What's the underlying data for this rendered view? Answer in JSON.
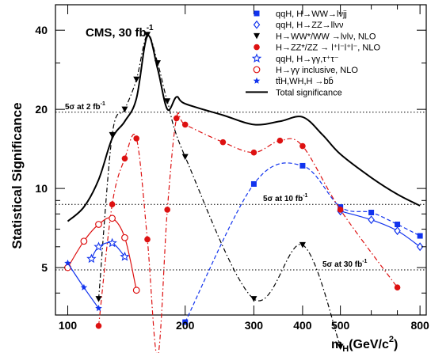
{
  "chart_data": {
    "type": "line",
    "title": "",
    "annotation": "CMS, 30 fb",
    "annotation_superscript": "-1",
    "ylabel": "Statistical Significance",
    "xlabel_main": "m",
    "xlabel_sub": "H",
    "xlabel_unit": "(GeV/c",
    "xlabel_unit_sup": "2",
    "xlabel_close": ")",
    "xscale": "log",
    "yscale": "log",
    "xlim": [
      93,
      830
    ],
    "ylim": [
      3.3,
      50
    ],
    "xticks": [
      100,
      200,
      300,
      400,
      500,
      800
    ],
    "yticks": [
      5,
      10,
      20,
      40
    ],
    "grid": false,
    "legend_position": "top-right",
    "reference_lines": [
      {
        "y": 19.5,
        "label": "5σ at 2 fb",
        "label_sup": "-1"
      },
      {
        "y": 8.7,
        "label": "5σ at 10 fb",
        "label_sup": "-1"
      },
      {
        "y": 4.9,
        "label": "5σ at 30 fb",
        "label_sup": "-1"
      }
    ],
    "series": [
      {
        "name": "qqH, H→WW→lνjj",
        "color": "#1133ee",
        "style": "dash",
        "marker": "square",
        "points": [
          [
            200,
            3.1
          ],
          [
            300,
            10.4
          ],
          [
            400,
            12.2
          ],
          [
            500,
            8.5
          ],
          [
            600,
            8.1
          ],
          [
            700,
            7.3
          ],
          [
            800,
            6.6
          ]
        ]
      },
      {
        "name": "qqH, H→ZZ→llνν",
        "color": "#1133ee",
        "style": "solid",
        "marker": "diamond-open",
        "points": [
          [
            500,
            8.2
          ],
          [
            600,
            7.6
          ],
          [
            700,
            6.9
          ],
          [
            800,
            6.0
          ]
        ]
      },
      {
        "name": "H→WW*/WW →lνlν, NLO",
        "color": "#000000",
        "style": "dashdot",
        "marker": "triangle-down",
        "points": [
          [
            120,
            3.8
          ],
          [
            130,
            16.0
          ],
          [
            140,
            20.0
          ],
          [
            150,
            26.0
          ],
          [
            160,
            38.5
          ],
          [
            170,
            30.0
          ],
          [
            180,
            21.5
          ],
          [
            200,
            13.2
          ],
          [
            300,
            3.8
          ],
          [
            400,
            6.1
          ],
          [
            500,
            2.5
          ]
        ]
      },
      {
        "name": "H→ZZ*/ZZ → l⁺l⁻l⁺l⁻, NLO",
        "color": "#dd1111",
        "style": "dashdot",
        "marker": "circle",
        "points": [
          [
            120,
            3.0
          ],
          [
            130,
            8.7
          ],
          [
            140,
            13.0
          ],
          [
            150,
            15.5
          ],
          [
            160,
            6.4
          ],
          [
            170,
            2.3
          ],
          [
            180,
            8.3
          ],
          [
            190,
            18.5
          ],
          [
            200,
            17.5
          ],
          [
            250,
            15.0
          ],
          [
            300,
            13.7
          ],
          [
            350,
            15.2
          ],
          [
            400,
            14.5
          ],
          [
            500,
            8.3
          ],
          [
            700,
            4.2
          ]
        ]
      },
      {
        "name": "qqH, H→γγ,τ⁺τ⁻",
        "color": "#1133ee",
        "style": "solid",
        "marker": "star-open",
        "points": [
          [
            115,
            5.4
          ],
          [
            120,
            6.0
          ],
          [
            130,
            6.2
          ],
          [
            140,
            5.5
          ]
        ]
      },
      {
        "name": "H→γγ inclusive, NLO",
        "color": "#dd1111",
        "style": "solid",
        "marker": "circle-open",
        "points": [
          [
            100,
            5.0
          ],
          [
            110,
            6.3
          ],
          [
            120,
            7.3
          ],
          [
            130,
            7.7
          ],
          [
            140,
            6.5
          ],
          [
            150,
            4.1
          ]
        ]
      },
      {
        "name": "tt̄H,WH,H →bb̄",
        "color": "#1133ee",
        "style": "solid",
        "marker": "star",
        "points": [
          [
            100,
            5.2
          ],
          [
            110,
            4.2
          ],
          [
            120,
            3.5
          ]
        ]
      },
      {
        "name": "Total significance",
        "color": "#000000",
        "style": "solid",
        "marker": "none",
        "points": [
          [
            100,
            7.5
          ],
          [
            110,
            8.5
          ],
          [
            120,
            10.8
          ],
          [
            130,
            15.5
          ],
          [
            140,
            18.0
          ],
          [
            150,
            22.0
          ],
          [
            160,
            38.0
          ],
          [
            170,
            28.5
          ],
          [
            180,
            20.0
          ],
          [
            190,
            22.3
          ],
          [
            200,
            21.0
          ],
          [
            250,
            19.0
          ],
          [
            300,
            17.5
          ],
          [
            350,
            18.0
          ],
          [
            400,
            18.7
          ],
          [
            450,
            16.0
          ],
          [
            500,
            13.5
          ],
          [
            600,
            11.0
          ],
          [
            700,
            9.5
          ],
          [
            800,
            8.6
          ]
        ]
      }
    ]
  }
}
